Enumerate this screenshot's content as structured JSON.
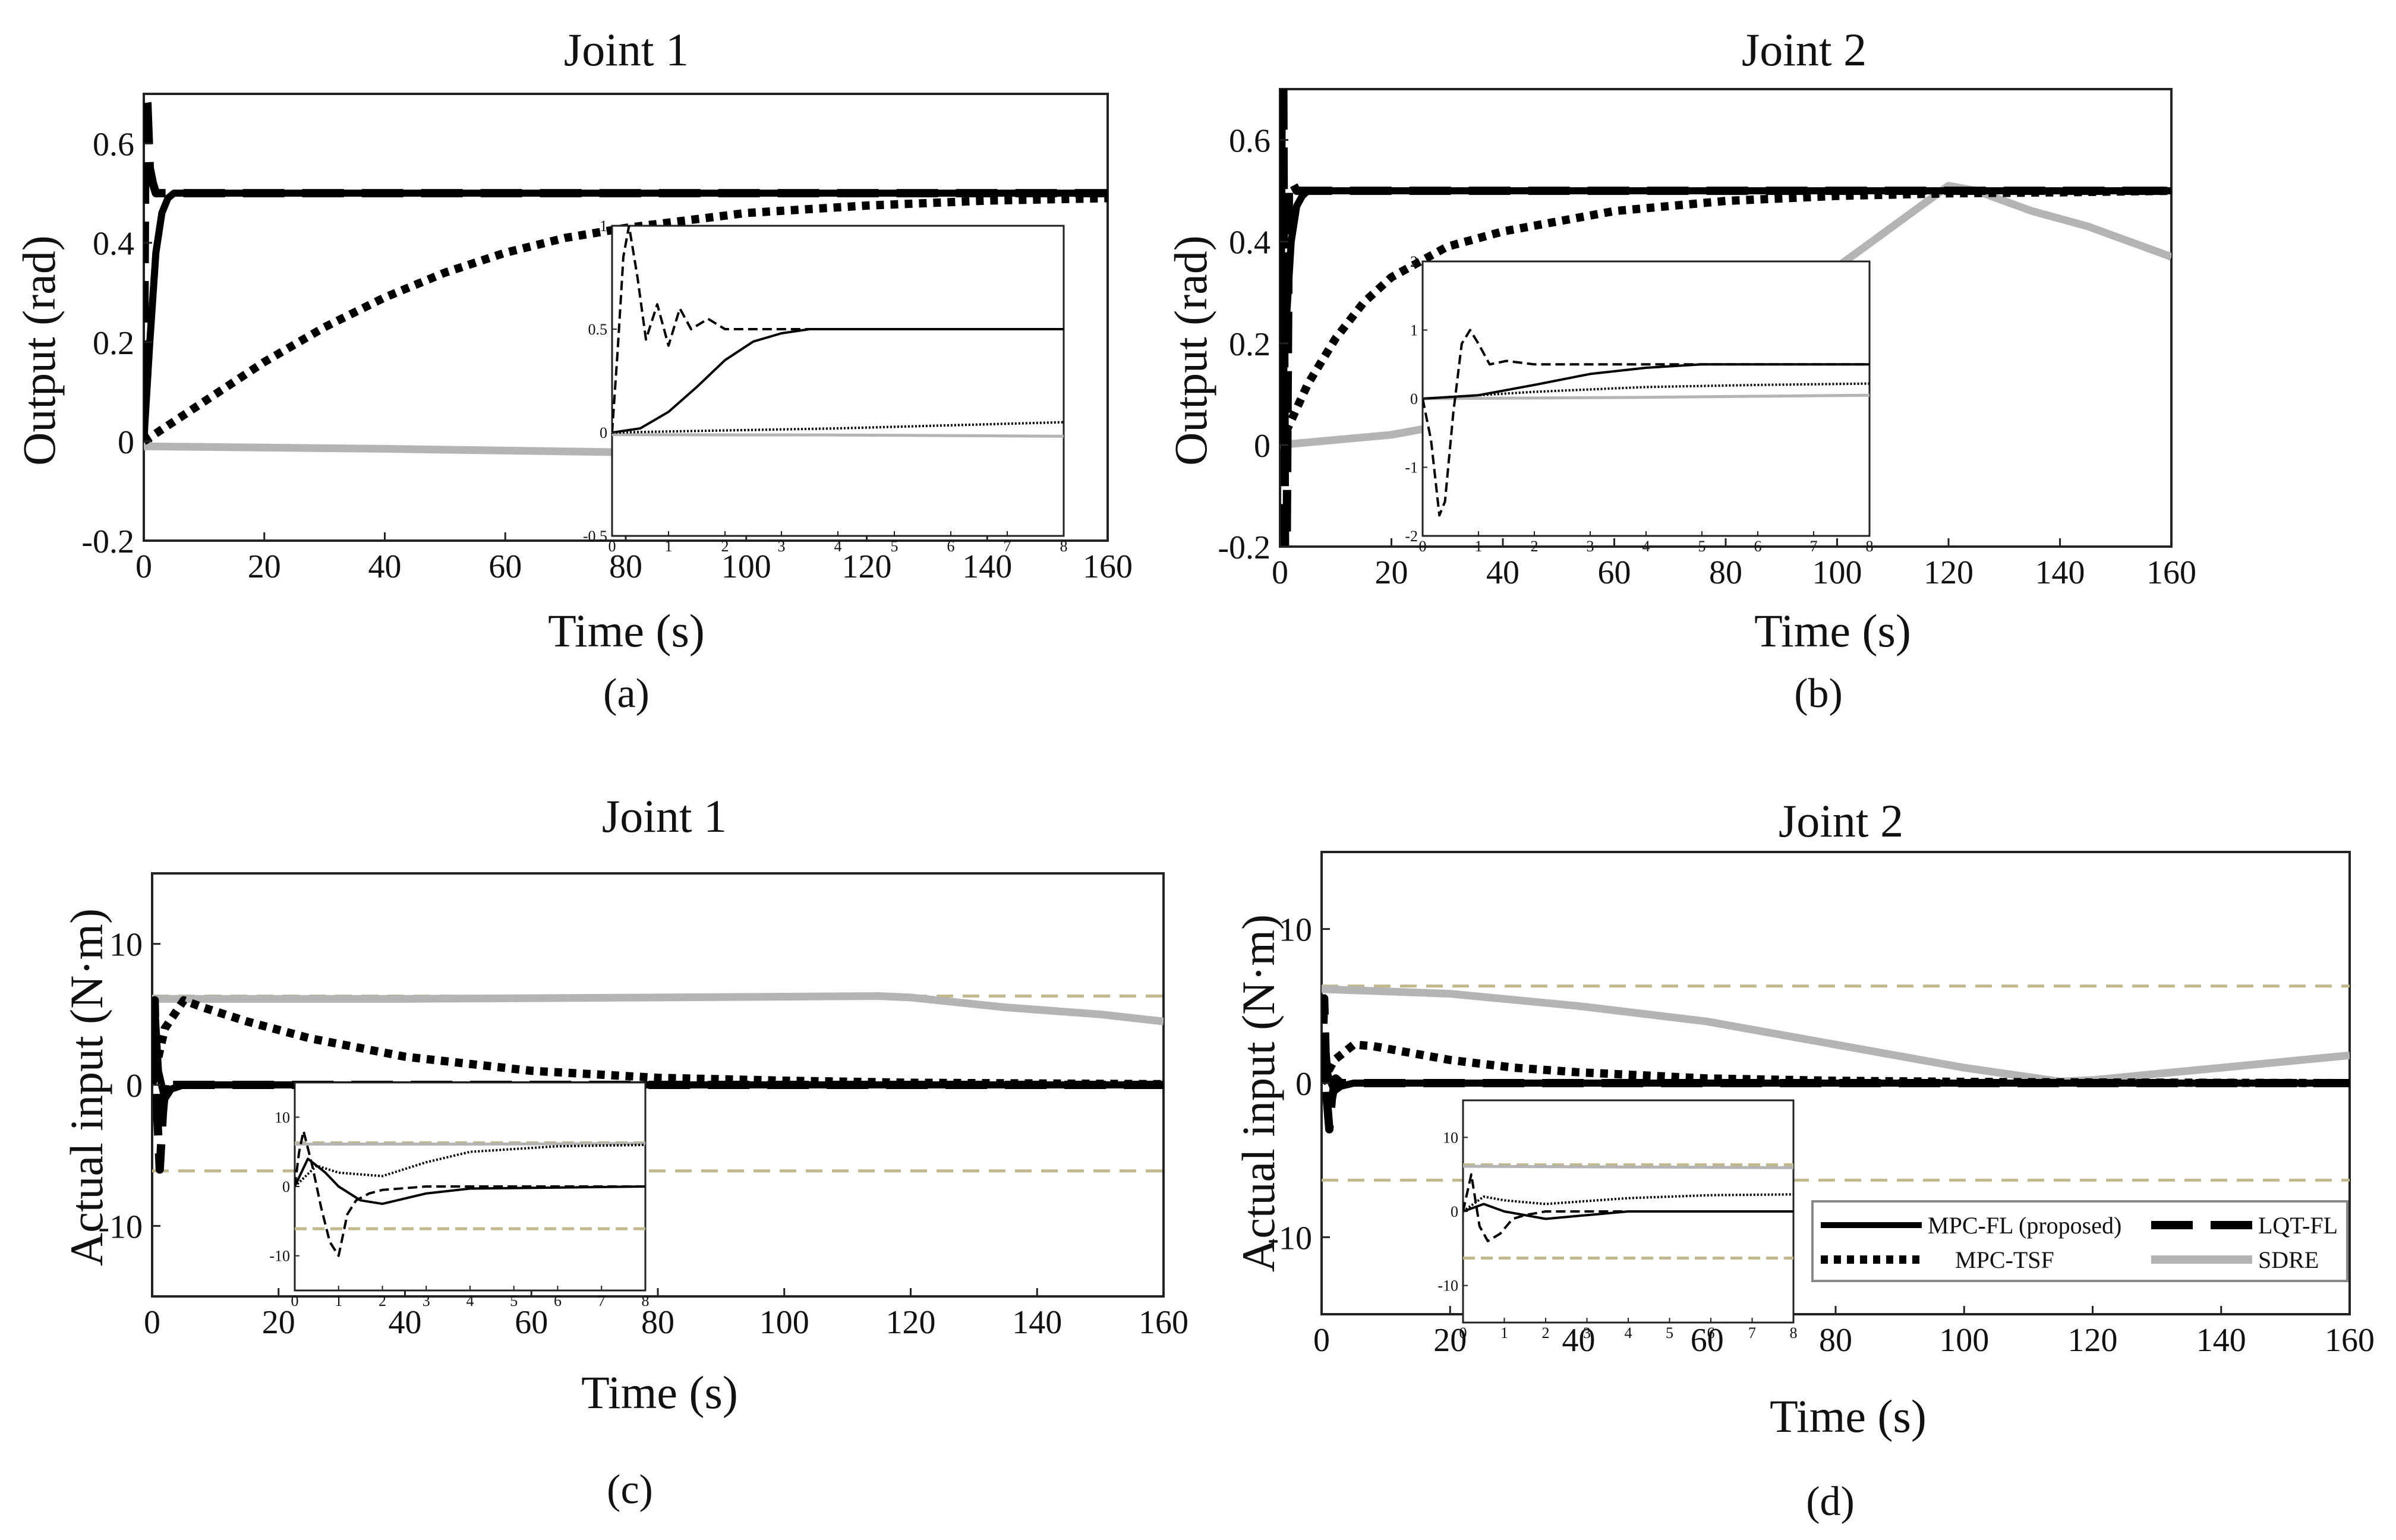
{
  "figure": {
    "legend": [
      {
        "key": "mpcfl",
        "label": "MPC-FL (proposed)"
      },
      {
        "key": "lqt",
        "label": "LQT-FL"
      },
      {
        "key": "tsf",
        "label": "MPC-TSF"
      },
      {
        "key": "sdre",
        "label": "SDRE"
      }
    ],
    "styles": {
      "mpcfl": {
        "color": "#000000",
        "dash": "none"
      },
      "lqt": {
        "color": "#000000",
        "dash": "long-dash"
      },
      "tsf": {
        "color": "#000000",
        "dash": "dotted"
      },
      "sdre": {
        "color": "#b4b4b4",
        "dash": "none"
      },
      "limit": {
        "color": "#c2b88e",
        "dash": "dashed"
      }
    }
  },
  "chart_data": [
    {
      "type": "line",
      "panel": "(a)",
      "title": "Joint 1",
      "xlabel": "Time (s)",
      "ylabel": "Output (rad)",
      "xlim": [
        0,
        160
      ],
      "ylim": [
        -0.2,
        0.7
      ],
      "xticks": [
        "0",
        "20",
        "40",
        "60",
        "80",
        "100",
        "120",
        "140",
        "160"
      ],
      "yticks": [
        "-0.2",
        "0",
        "0.2",
        "0.4",
        "0.6"
      ],
      "series": [
        {
          "key": "lqt",
          "x": [
            0,
            0.3,
            0.6,
            1,
            1.5,
            2,
            3,
            160
          ],
          "y": [
            0,
            0.7,
            0.68,
            0.55,
            0.52,
            0.5,
            0.5,
            0.5
          ]
        },
        {
          "key": "mpcfl",
          "x": [
            0,
            1,
            2,
            3,
            4,
            5,
            7,
            160
          ],
          "y": [
            0,
            0.2,
            0.38,
            0.46,
            0.49,
            0.5,
            0.5,
            0.5
          ]
        },
        {
          "key": "tsf",
          "x": [
            0,
            10,
            20,
            30,
            40,
            50,
            60,
            70,
            80,
            100,
            120,
            140,
            160
          ],
          "y": [
            0,
            0.08,
            0.16,
            0.23,
            0.29,
            0.34,
            0.38,
            0.41,
            0.43,
            0.46,
            0.475,
            0.485,
            0.49
          ]
        },
        {
          "key": "sdre",
          "x": [
            0,
            40,
            80,
            110,
            117,
            125,
            140,
            152
          ],
          "y": [
            -0.01,
            -0.015,
            -0.022,
            -0.025,
            -0.025,
            0.0,
            0.05,
            0.1
          ]
        }
      ],
      "inset": {
        "xlim": [
          0,
          8
        ],
        "ylim": [
          -0.5,
          1
        ],
        "xticks": [
          "0",
          "1",
          "2",
          "3",
          "4",
          "5",
          "6",
          "7",
          "8"
        ],
        "yticks": [
          "-0.5",
          "0",
          "0.5",
          "1"
        ],
        "series": [
          {
            "key": "lqt",
            "x": [
              0,
              0.1,
              0.2,
              0.3,
              0.45,
              0.6,
              0.8,
              1.0,
              1.2,
              1.4,
              1.7,
              2,
              3,
              8
            ],
            "y": [
              0,
              0.4,
              0.85,
              1.0,
              0.75,
              0.45,
              0.62,
              0.42,
              0.6,
              0.5,
              0.55,
              0.5,
              0.5,
              0.5
            ]
          },
          {
            "key": "mpcfl",
            "x": [
              0,
              0.5,
              1,
              1.5,
              2,
              2.5,
              3,
              3.5,
              4,
              8
            ],
            "y": [
              0,
              0.02,
              0.1,
              0.22,
              0.35,
              0.44,
              0.48,
              0.5,
              0.5,
              0.5
            ]
          },
          {
            "key": "tsf",
            "x": [
              0,
              2,
              4,
              6,
              8
            ],
            "y": [
              0,
              0.01,
              0.02,
              0.035,
              0.05
            ]
          },
          {
            "key": "sdre",
            "x": [
              0,
              4,
              6,
              8
            ],
            "y": [
              -0.01,
              -0.012,
              -0.015,
              -0.018
            ]
          }
        ]
      }
    },
    {
      "type": "line",
      "panel": "(b)",
      "title": "Joint 2",
      "xlabel": "Time (s)",
      "ylabel": "Output (rad)",
      "xlim": [
        0,
        160
      ],
      "ylim": [
        -0.2,
        0.7
      ],
      "xticks": [
        "0",
        "20",
        "40",
        "60",
        "80",
        "100",
        "120",
        "140",
        "160"
      ],
      "yticks": [
        "-0.2",
        "0",
        "0.2",
        "0.4",
        "0.6"
      ],
      "series": [
        {
          "key": "lqt",
          "x": [
            0,
            0.3,
            0.6,
            0.9,
            1.2,
            1.6,
            2,
            3,
            160
          ],
          "y": [
            0,
            0.7,
            0.7,
            -0.2,
            -0.2,
            0.5,
            0.52,
            0.5,
            0.5
          ]
        },
        {
          "key": "mpcfl",
          "x": [
            0,
            1,
            2,
            3,
            4,
            5,
            7,
            160
          ],
          "y": [
            0,
            0.22,
            0.4,
            0.47,
            0.49,
            0.5,
            0.5,
            0.5
          ]
        },
        {
          "key": "tsf",
          "x": [
            0,
            5,
            10,
            15,
            20,
            30,
            40,
            60,
            80,
            100,
            120,
            140,
            160
          ],
          "y": [
            0,
            0.12,
            0.21,
            0.28,
            0.33,
            0.39,
            0.42,
            0.46,
            0.48,
            0.49,
            0.495,
            0.497,
            0.5
          ]
        },
        {
          "key": "sdre",
          "x": [
            0,
            20,
            40,
            60,
            80,
            100,
            110,
            120,
            125,
            135,
            145,
            160
          ],
          "y": [
            0,
            0.02,
            0.06,
            0.12,
            0.22,
            0.35,
            0.43,
            0.51,
            0.5,
            0.46,
            0.43,
            0.37
          ]
        }
      ],
      "inset": {
        "xlim": [
          0,
          8
        ],
        "ylim": [
          -2,
          2
        ],
        "xticks": [
          "0",
          "1",
          "2",
          "3",
          "4",
          "5",
          "6",
          "7",
          "8"
        ],
        "yticks": [
          "-2",
          "-1",
          "0",
          "1",
          "2"
        ],
        "series": [
          {
            "key": "lqt",
            "x": [
              0,
              0.15,
              0.3,
              0.4,
              0.55,
              0.7,
              0.85,
              1.0,
              1.2,
              1.5,
              2,
              8
            ],
            "y": [
              0,
              -0.6,
              -1.7,
              -1.5,
              -0.2,
              0.8,
              1.0,
              0.8,
              0.5,
              0.55,
              0.5,
              0.5
            ]
          },
          {
            "key": "mpcfl",
            "x": [
              0,
              1,
              2,
              3,
              4,
              5,
              8
            ],
            "y": [
              0,
              0.05,
              0.2,
              0.36,
              0.45,
              0.5,
              0.5
            ]
          },
          {
            "key": "tsf",
            "x": [
              0,
              1,
              2,
              4,
              6,
              8
            ],
            "y": [
              0,
              0.05,
              0.1,
              0.17,
              0.2,
              0.22
            ]
          },
          {
            "key": "sdre",
            "x": [
              0,
              4,
              8
            ],
            "y": [
              0,
              0.02,
              0.05
            ]
          }
        ]
      }
    },
    {
      "type": "line",
      "panel": "(c)",
      "title": "Joint 1",
      "xlabel": "Time (s)",
      "ylabel": "Actual input (N·m)",
      "xlim": [
        0,
        160
      ],
      "ylim": [
        -15,
        15
      ],
      "xticks": [
        "0",
        "20",
        "40",
        "60",
        "80",
        "100",
        "120",
        "140",
        "160"
      ],
      "yticks": [
        "-10",
        "0",
        "10"
      ],
      "limits": [
        6.3,
        -6.1
      ],
      "series": [
        {
          "key": "lqt",
          "x": [
            0,
            0.4,
            0.8,
            1.2,
            1.7,
            2.2,
            3,
            160
          ],
          "y": [
            0,
            6,
            -2,
            -6,
            -2,
            0.5,
            0,
            0
          ]
        },
        {
          "key": "mpcfl",
          "x": [
            0,
            0.5,
            1,
            2,
            3,
            5,
            160
          ],
          "y": [
            0,
            5,
            1,
            -1,
            -0.3,
            0,
            0
          ]
        },
        {
          "key": "tsf",
          "x": [
            0,
            2,
            5,
            8,
            15,
            25,
            40,
            60,
            80,
            100,
            120,
            140,
            160
          ],
          "y": [
            0,
            4,
            6,
            5.5,
            4.5,
            3.3,
            2,
            1,
            0.5,
            0.3,
            0.15,
            0.1,
            0.05
          ]
        },
        {
          "key": "sdre",
          "x": [
            0,
            40,
            80,
            115,
            120,
            135,
            150,
            160
          ],
          "y": [
            6.1,
            6.1,
            6.2,
            6.3,
            6.2,
            5.5,
            5,
            4.5
          ]
        }
      ],
      "inset": {
        "xlim": [
          0,
          8
        ],
        "ylim": [
          -15,
          15
        ],
        "xticks": [
          "0",
          "1",
          "2",
          "3",
          "4",
          "5",
          "6",
          "7",
          "8"
        ],
        "yticks": [
          "-10",
          "0",
          "10"
        ],
        "limits": [
          6.3,
          -6.1
        ],
        "series": [
          {
            "key": "lqt",
            "x": [
              0,
              0.1,
              0.2,
              0.4,
              0.6,
              0.8,
              1.0,
              1.2,
              1.4,
              1.7,
              2,
              3,
              8
            ],
            "y": [
              0,
              5,
              8,
              3,
              -3,
              -8,
              -10,
              -4,
              -2,
              -1,
              -0.5,
              0,
              0
            ]
          },
          {
            "key": "mpcfl",
            "x": [
              0,
              0.3,
              0.7,
              1,
              1.5,
              2,
              3,
              4,
              8
            ],
            "y": [
              0,
              4,
              2,
              0,
              -2,
              -2.5,
              -1,
              -0.3,
              0
            ]
          },
          {
            "key": "tsf",
            "x": [
              0,
              0.5,
              1,
              2,
              3,
              4,
              6,
              8
            ],
            "y": [
              0,
              3,
              2,
              1.5,
              3.5,
              5,
              5.8,
              6
            ]
          },
          {
            "key": "sdre",
            "x": [
              0,
              2,
              4,
              8
            ],
            "y": [
              6.1,
              6.1,
              6.1,
              6.2
            ]
          }
        ]
      }
    },
    {
      "type": "line",
      "panel": "(d)",
      "title": "Joint 2",
      "xlabel": "Time (s)",
      "ylabel": "Actual input (N·m)",
      "xlim": [
        0,
        160
      ],
      "ylim": [
        -15,
        15
      ],
      "xticks": [
        "0",
        "20",
        "40",
        "60",
        "80",
        "100",
        "120",
        "140",
        "160"
      ],
      "yticks": [
        "-10",
        "0",
        "10"
      ],
      "limits": [
        6.3,
        -6.3
      ],
      "series": [
        {
          "key": "lqt",
          "x": [
            0,
            0.4,
            0.8,
            1.2,
            1.6,
            2.2,
            3,
            160
          ],
          "y": [
            0,
            5.5,
            -1,
            -3,
            -1,
            0.3,
            0,
            0
          ]
        },
        {
          "key": "mpcfl",
          "x": [
            0,
            0.5,
            1,
            2,
            3,
            5,
            160
          ],
          "y": [
            0,
            3,
            0.5,
            -0.5,
            -0.2,
            0,
            0
          ]
        },
        {
          "key": "tsf",
          "x": [
            0,
            2,
            5,
            8,
            12,
            20,
            30,
            40,
            60,
            80,
            100,
            120,
            160
          ],
          "y": [
            0,
            1.5,
            2.5,
            2.4,
            2.1,
            1.5,
            1,
            0.7,
            0.3,
            0.15,
            0.08,
            0.04,
            0
          ]
        },
        {
          "key": "sdre",
          "x": [
            0,
            20,
            40,
            60,
            80,
            100,
            115,
            120,
            130,
            140,
            160
          ],
          "y": [
            6.1,
            5.8,
            5,
            4,
            2.5,
            1,
            0.1,
            0.2,
            0.6,
            1,
            1.8
          ]
        }
      ],
      "inset": {
        "xlim": [
          0,
          8
        ],
        "ylim": [
          -15,
          15
        ],
        "xticks": [
          "0",
          "1",
          "2",
          "3",
          "4",
          "5",
          "6",
          "7",
          "8"
        ],
        "yticks": [
          "-10",
          "0",
          "10"
        ],
        "limits": [
          6.3,
          -6.3
        ],
        "series": [
          {
            "key": "lqt",
            "x": [
              0,
              0.2,
              0.4,
              0.6,
              0.9,
              1.2,
              1.5,
              2,
              3,
              8
            ],
            "y": [
              0,
              5,
              -2,
              -4,
              -3,
              -1,
              -0.5,
              0,
              0,
              0
            ]
          },
          {
            "key": "mpcfl",
            "x": [
              0,
              0.5,
              1,
              2,
              3,
              4,
              8
            ],
            "y": [
              0,
              1,
              0,
              -1,
              -0.5,
              0,
              0
            ]
          },
          {
            "key": "tsf",
            "x": [
              0,
              0.5,
              1,
              2,
              4,
              6,
              8
            ],
            "y": [
              0,
              2,
              1.5,
              1,
              1.8,
              2.2,
              2.3
            ]
          },
          {
            "key": "sdre",
            "x": [
              0,
              4,
              8
            ],
            "y": [
              6.1,
              6.0,
              5.9
            ]
          }
        ]
      }
    }
  ]
}
